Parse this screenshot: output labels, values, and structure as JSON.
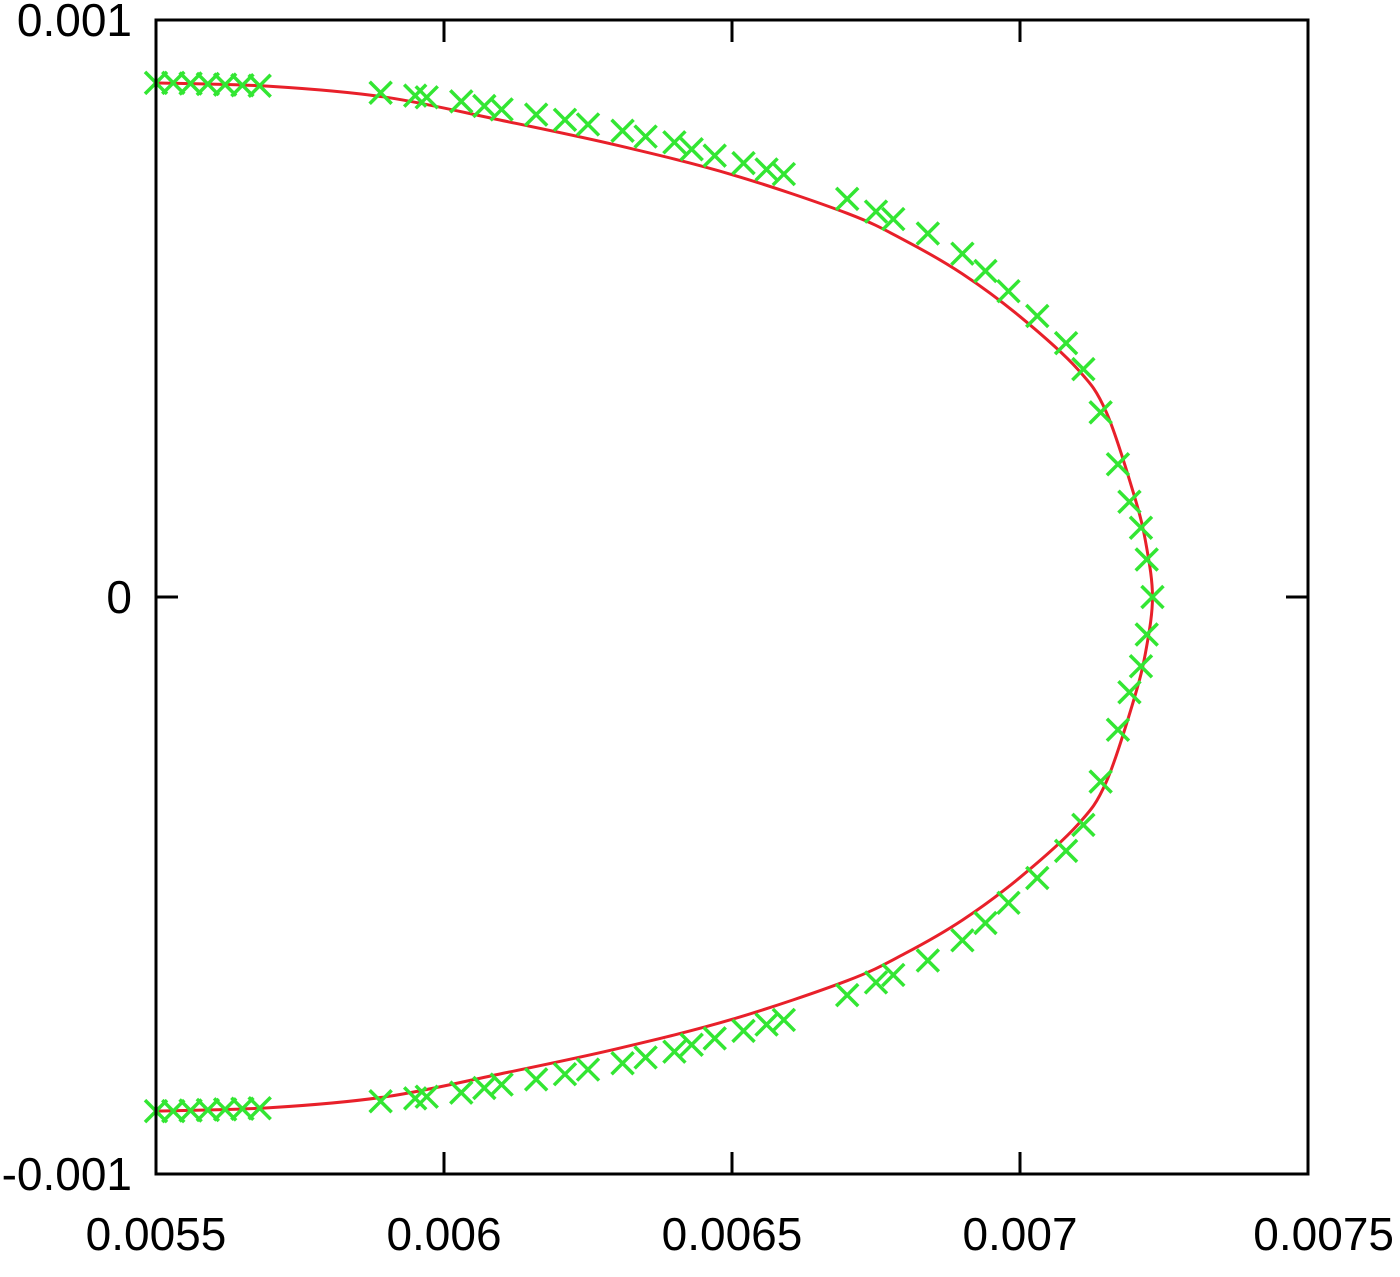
{
  "chart_data": {
    "type": "scatter",
    "title": "",
    "xlabel": "",
    "ylabel": "",
    "xlim": [
      0.0055,
      0.0075
    ],
    "ylim": [
      -0.001,
      0.001
    ],
    "x_ticks": [
      0.0055,
      0.006,
      0.0065,
      0.007,
      0.0075
    ],
    "x_tick_labels": [
      "0.0055",
      "0.006",
      "0.0065",
      "0.007",
      "0.0075"
    ],
    "y_ticks": [
      -0.001,
      0,
      0.001
    ],
    "y_tick_labels": [
      "-0.001",
      "0",
      "0.001"
    ],
    "grid": false,
    "legend": "none",
    "colors": {
      "curve": "#e8202a",
      "markers": "#33e633",
      "axes": "#000000"
    },
    "curve": {
      "style": "line",
      "x": [
        0.0055,
        0.0057,
        0.0059,
        0.0061,
        0.0063,
        0.0065,
        0.0067,
        0.0068,
        0.0069,
        0.007,
        0.0071,
        0.00715,
        0.0072,
        0.00722,
        0.00723,
        0.00722,
        0.0072,
        0.00715,
        0.0071,
        0.007,
        0.0069,
        0.0068,
        0.0067,
        0.0065,
        0.0063,
        0.0061,
        0.0059,
        0.0057,
        0.0055
      ],
      "y": [
        0.000891,
        0.000885,
        0.000866,
        0.000826,
        0.000783,
        0.000732,
        0.000665,
        0.000618,
        0.00056,
        0.000486,
        0.000395,
        0.00032,
        0.00017,
        8.5e-05,
        0.0,
        -8.5e-05,
        -0.00017,
        -0.00032,
        -0.000395,
        -0.000486,
        -0.00056,
        -0.000618,
        -0.000665,
        -0.000732,
        -0.000783,
        -0.000826,
        -0.000866,
        -0.000885,
        -0.000891
      ]
    },
    "markers": {
      "style": "x",
      "x": [
        0.0055,
        0.00553,
        0.00556,
        0.00559,
        0.00562,
        0.00565,
        0.00568,
        0.00589,
        0.00595,
        0.00597,
        0.00603,
        0.00607,
        0.0061,
        0.00616,
        0.00621,
        0.00625,
        0.00631,
        0.00635,
        0.0064,
        0.00643,
        0.00647,
        0.00652,
        0.00656,
        0.00659,
        0.0067,
        0.00675,
        0.00678,
        0.00684,
        0.0069,
        0.00694,
        0.00698,
        0.00703,
        0.00708,
        0.00711,
        0.00714,
        0.00717,
        0.00719,
        0.00721,
        0.00722,
        0.00723,
        0.00722,
        0.00721,
        0.00719,
        0.00717,
        0.00714,
        0.00711,
        0.00708,
        0.00703,
        0.00698,
        0.00694,
        0.0069,
        0.00684,
        0.00678,
        0.00675,
        0.0067,
        0.00659,
        0.00656,
        0.00652,
        0.00647,
        0.00643,
        0.0064,
        0.00635,
        0.00631,
        0.00625,
        0.00621,
        0.00616,
        0.0061,
        0.00607,
        0.00603,
        0.00597,
        0.00595,
        0.00589,
        0.00568,
        0.00565,
        0.00562,
        0.00559,
        0.00556,
        0.00553,
        0.0055
      ],
      "y": [
        0.000891,
        0.000891,
        0.00089,
        0.000889,
        0.000888,
        0.000887,
        0.000886,
        0.000874,
        0.000869,
        0.000866,
        0.000859,
        0.000851,
        0.000845,
        0.000836,
        0.000827,
        0.000819,
        0.000808,
        0.000798,
        0.000788,
        0.000776,
        0.000765,
        0.000752,
        0.000741,
        0.000733,
        0.00069,
        0.000668,
        0.000655,
        0.00063,
        0.000595,
        0.000565,
        0.00053,
        0.000487,
        0.00044,
        0.000395,
        0.00032,
        0.00023,
        0.000165,
        0.00012,
        6.5e-05,
        0.0,
        -6.5e-05,
        -0.00012,
        -0.000165,
        -0.00023,
        -0.00032,
        -0.000395,
        -0.00044,
        -0.000487,
        -0.00053,
        -0.000565,
        -0.000595,
        -0.00063,
        -0.000655,
        -0.000668,
        -0.00069,
        -0.000733,
        -0.000741,
        -0.000752,
        -0.000765,
        -0.000776,
        -0.000788,
        -0.000798,
        -0.000808,
        -0.000819,
        -0.000827,
        -0.000836,
        -0.000845,
        -0.000851,
        -0.000859,
        -0.000866,
        -0.000869,
        -0.000874,
        -0.000886,
        -0.000887,
        -0.000888,
        -0.000889,
        -0.00089,
        -0.000891,
        -0.000891
      ]
    }
  }
}
